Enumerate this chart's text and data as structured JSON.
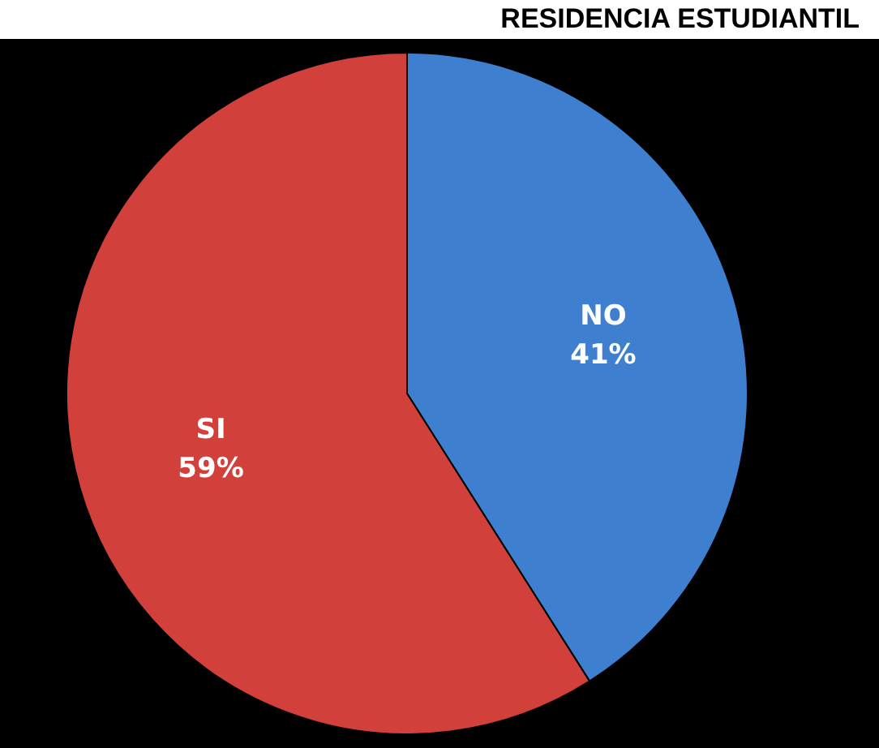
{
  "chart_data": {
    "type": "pie",
    "title": "RESIDENCIA ESTUDIANTIL",
    "categories": [
      "NO",
      "SI"
    ],
    "values": [
      41,
      59
    ],
    "value_labels": [
      "41%",
      "59%"
    ],
    "colors": [
      "#3f7fd0",
      "#d2403c"
    ],
    "legend": false
  }
}
